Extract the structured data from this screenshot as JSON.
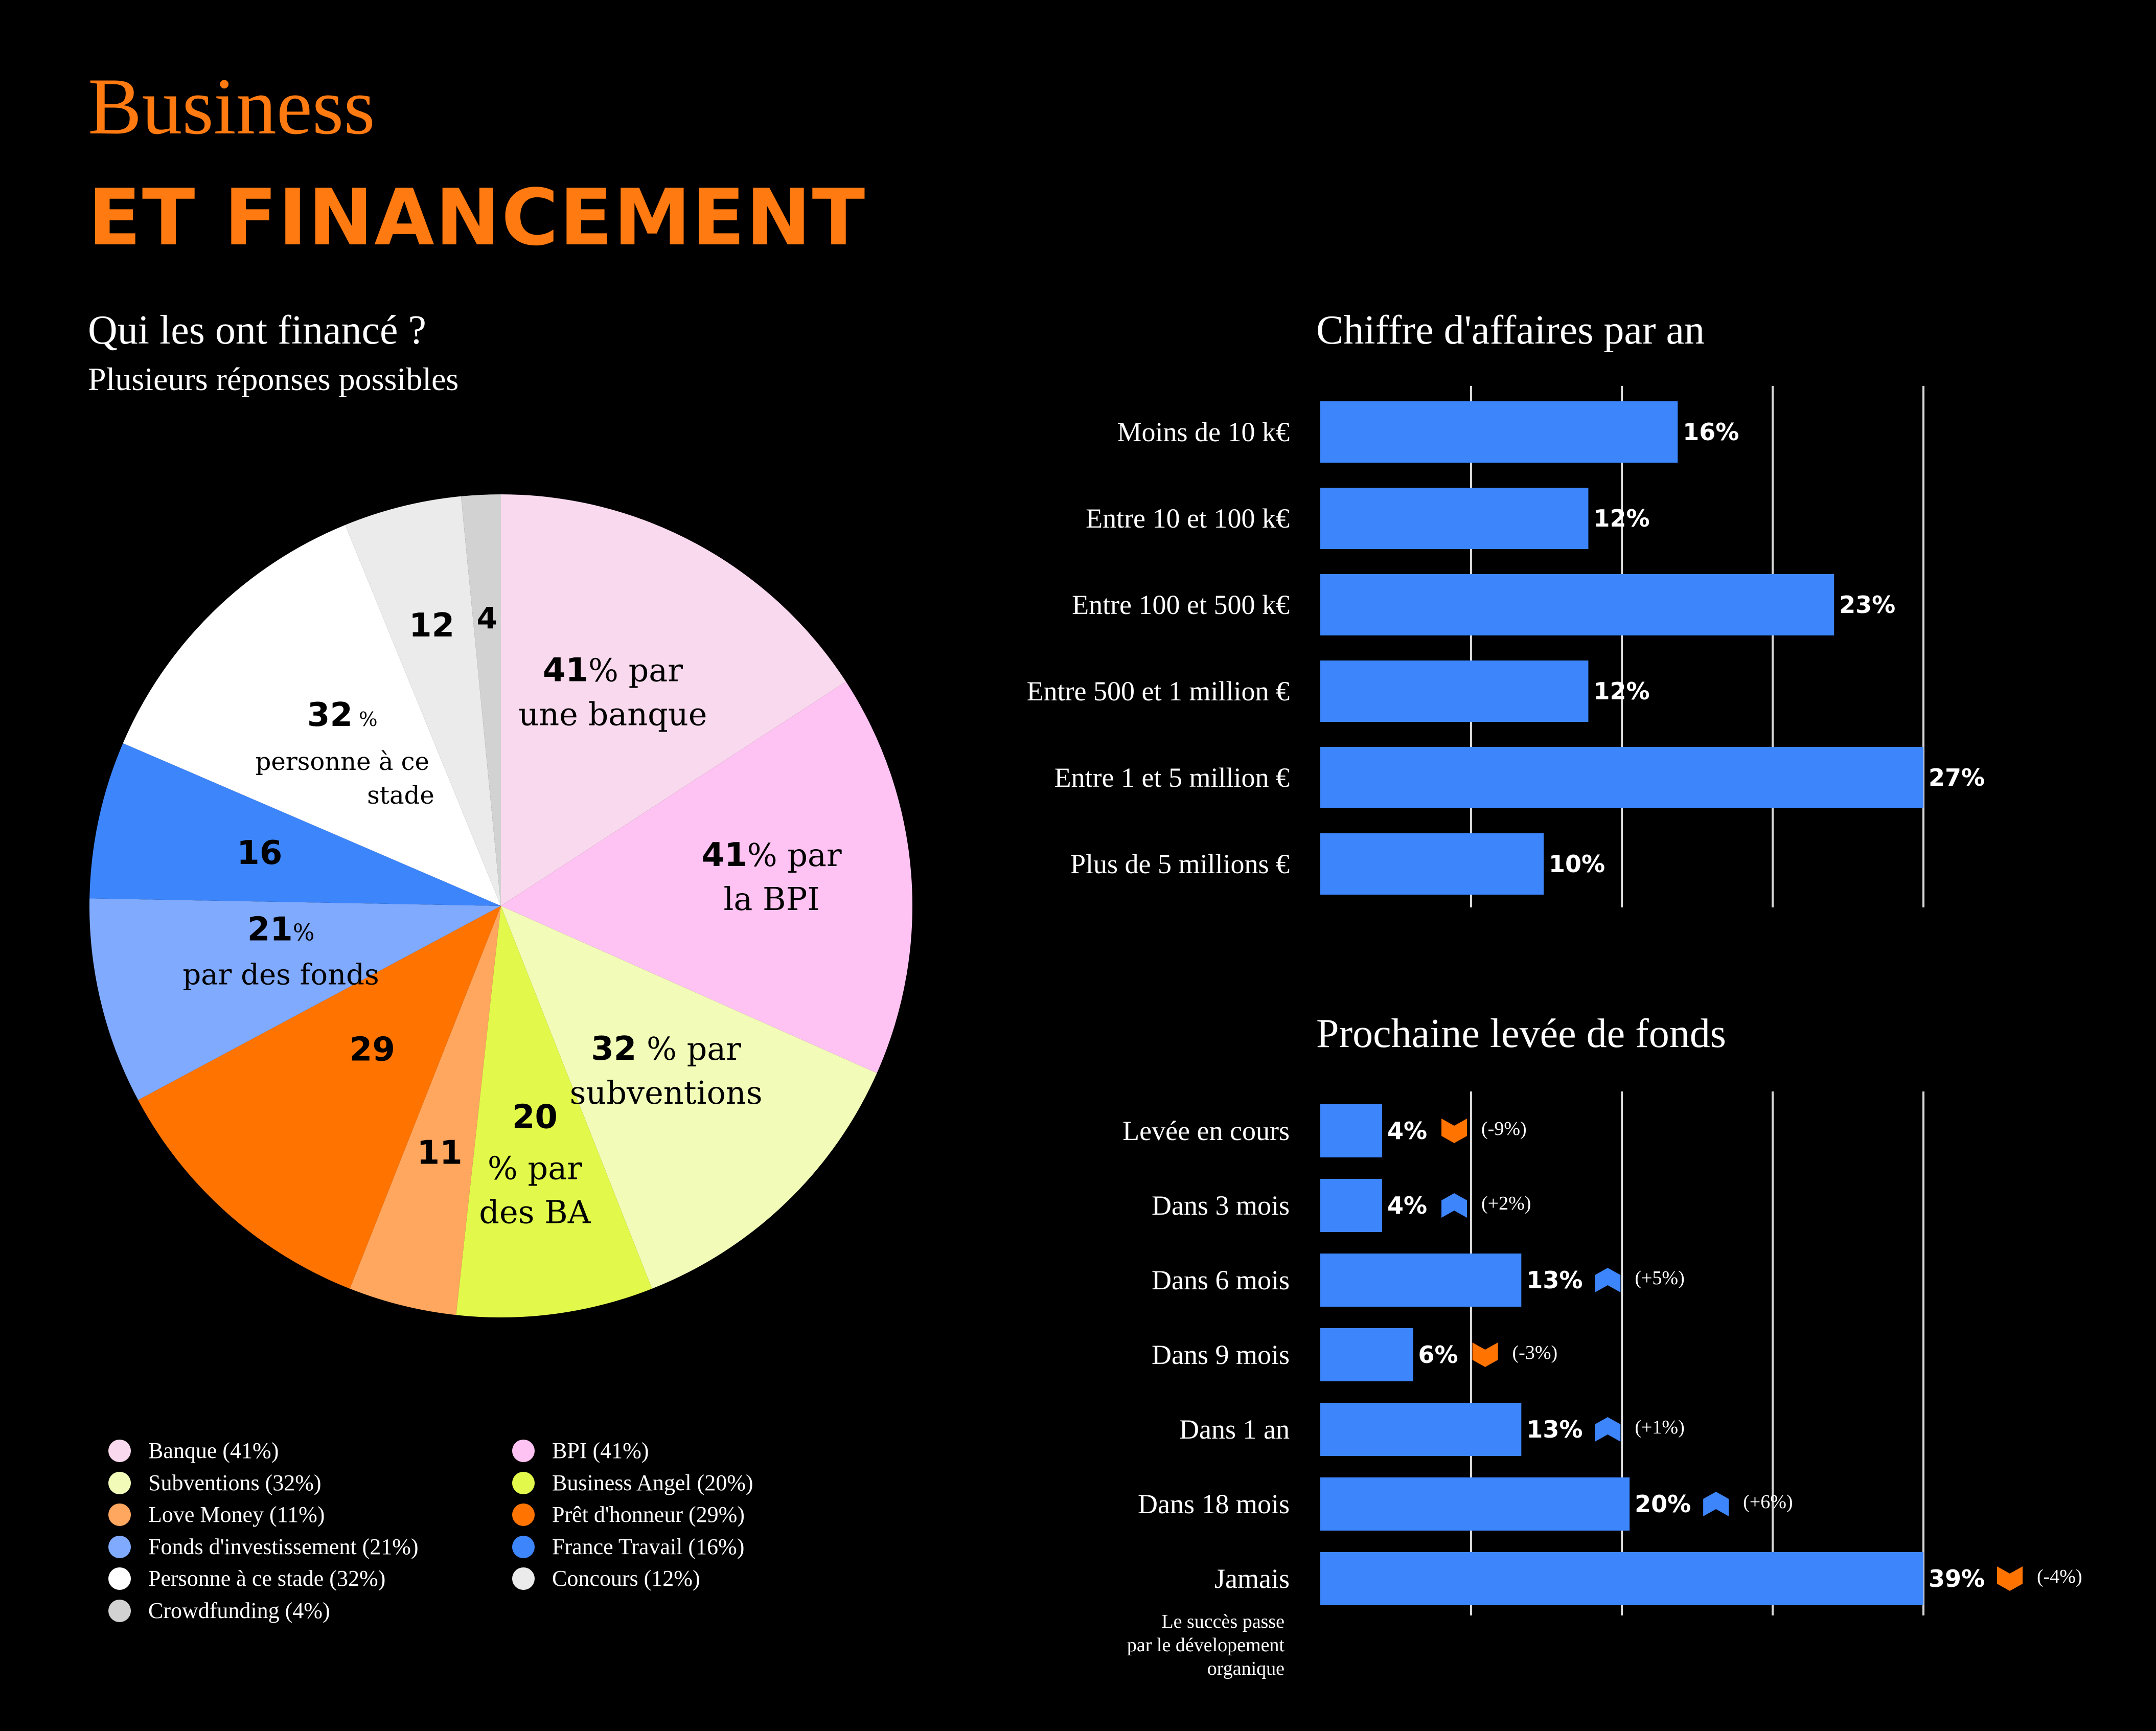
{
  "header": {
    "title_line1": "Business",
    "title_line2": "ET FINANCEMENT"
  },
  "pie_section": {
    "title": "Qui les ont financé ?",
    "subtitle": "Plusieurs réponses possibles"
  },
  "revenue_section": {
    "title": "Chiffre d'affaires par an"
  },
  "fundraise_section": {
    "title": "Prochaine levée de fonds"
  },
  "chart_data": [
    {
      "type": "pie",
      "title": "Qui les ont financé ?",
      "subtitle": "Plusieurs réponses possibles",
      "slices": [
        {
          "name": "Banque",
          "value": 41,
          "color": "#f9d9ee",
          "num": "41",
          "text": "% par",
          "text2": "une banque"
        },
        {
          "name": "BPI",
          "value": 41,
          "color": "#fec3f2",
          "num": "41",
          "text": "% par",
          "text2": "la BPI"
        },
        {
          "name": "Subventions",
          "value": 32,
          "color": "#f3fbb8",
          "num": "32",
          "text": " % par",
          "text2": "subventions"
        },
        {
          "name": "Business Angel",
          "value": 20,
          "color": "#e2f94b",
          "num": "20",
          "text": "% par",
          "text2": "des BA"
        },
        {
          "name": "Love Money",
          "value": 11,
          "color": "#ffa65f",
          "num": "11",
          "text": "",
          "text2": ""
        },
        {
          "name": "Prêt d'honneur",
          "value": 29,
          "color": "#ff7400",
          "num": "29",
          "text": "",
          "text2": ""
        },
        {
          "name": "Fonds d'investissement",
          "value": 21,
          "color": "#80aafe",
          "num": "21",
          "text": "%",
          "text2": "par des fonds"
        },
        {
          "name": "France Travail",
          "value": 16,
          "color": "#3d85fb",
          "num": "16",
          "text": "",
          "text2": ""
        },
        {
          "name": "Personne à ce stade",
          "value": 32,
          "color": "#ffffff",
          "num": "32",
          "text": " %",
          "text2": "personne à ce",
          "text3": "stade"
        },
        {
          "name": "Concours",
          "value": 12,
          "color": "#ebebeb",
          "num": "12",
          "text": "",
          "text2": ""
        },
        {
          "name": "Crowdfunding",
          "value": 4,
          "color": "#d2d2d2",
          "num": "4",
          "text": "",
          "text2": ""
        }
      ],
      "legend": [
        {
          "label": "Banque (41%)",
          "color": "#f9d9ee"
        },
        {
          "label": "BPI (41%)",
          "color": "#fec3f2"
        },
        {
          "label": "Subventions (32%)",
          "color": "#f3fbb8"
        },
        {
          "label": "Business Angel (20%)",
          "color": "#e2f94b"
        },
        {
          "label": "Love Money (11%)",
          "color": "#ffa65f"
        },
        {
          "label": "Prêt d'honneur (29%)",
          "color": "#ff7400"
        },
        {
          "label": "Fonds d'investissement (21%)",
          "color": "#80aafe"
        },
        {
          "label": "France Travail (16%)",
          "color": "#3d85fb"
        },
        {
          "label": "Personne à ce stade (32%)",
          "color": "#ffffff"
        },
        {
          "label": "Concours (12%)",
          "color": "#ebebeb"
        },
        {
          "label": "Crowdfunding (4%)",
          "color": "#d2d2d2"
        }
      ]
    },
    {
      "type": "bar",
      "orientation": "horizontal",
      "title": "Chiffre d'affaires par an",
      "categories": [
        "Moins de 10 k€",
        "Entre 10 et 100 k€",
        "Entre 100 et 500 k€",
        "Entre 500 et 1 million €",
        "Entre 1 et 5 million €",
        "Plus de 5 millions €"
      ],
      "values": [
        16,
        12,
        23,
        12,
        27,
        10
      ],
      "labels": [
        "16%",
        "12%",
        "23%",
        "12%",
        "27%",
        "10%"
      ],
      "xlim": [
        0,
        27
      ],
      "bar_color": "#3d85fb",
      "grid": true
    },
    {
      "type": "bar",
      "orientation": "horizontal",
      "title": "Prochaine levée de fonds",
      "categories": [
        "Levée en cours",
        "Dans 3 mois",
        "Dans 6 mois",
        "Dans 9 mois",
        "Dans 1 an",
        "Dans 18 mois",
        "Jamais"
      ],
      "values": [
        4,
        4,
        13,
        6,
        13,
        20,
        39
      ],
      "labels": [
        "4%",
        "4%",
        "13%",
        "6%",
        "13%",
        "20%",
        "39%"
      ],
      "changes": [
        "(-9%)",
        "(+2%)",
        "(+5%)",
        "(-3%)",
        "(+1%)",
        "(+6%)",
        "(-4%)"
      ],
      "directions": [
        "down",
        "up",
        "up",
        "down",
        "up",
        "up",
        "down"
      ],
      "xlim": [
        0,
        39
      ],
      "bar_color": "#3d85fb",
      "up_color": "#3d85fb",
      "down_color": "#ff7400",
      "grid": true,
      "note_lines": [
        "Le succès passe",
        "par le dévelopement",
        "organique"
      ]
    }
  ]
}
